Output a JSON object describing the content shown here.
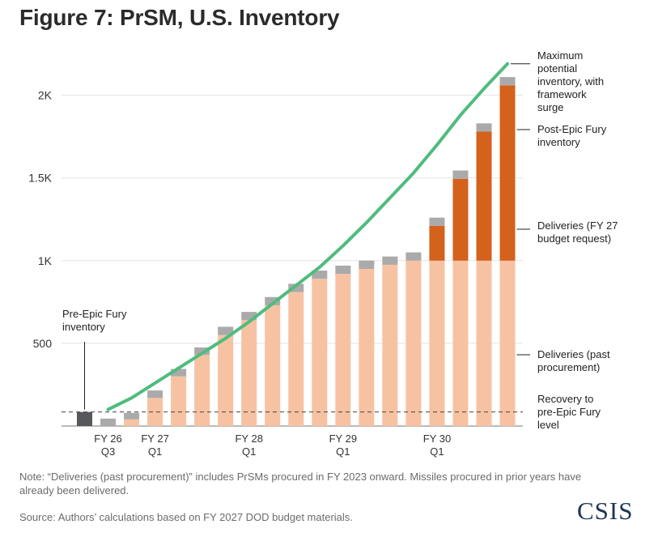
{
  "title": "Figure 7: PrSM, U.S. Inventory",
  "chart_data": {
    "type": "bar",
    "stacked": true,
    "ylim": [
      0,
      2300
    ],
    "y_ticks": [
      {
        "value": 500,
        "label": "500"
      },
      {
        "value": 1000,
        "label": "1K"
      },
      {
        "value": 1500,
        "label": "1.5K"
      },
      {
        "value": 2000,
        "label": "2K"
      }
    ],
    "x_tick_labels": [
      {
        "index": 1,
        "line1": "FY 26",
        "line2": "Q3"
      },
      {
        "index": 3,
        "line1": "FY 27",
        "line2": "Q1"
      },
      {
        "index": 7,
        "line1": "FY 28",
        "line2": "Q1"
      },
      {
        "index": 11,
        "line1": "FY 29",
        "line2": "Q1"
      },
      {
        "index": 15,
        "line1": "FY 30",
        "line2": "Q1"
      }
    ],
    "pre_epic_fury_inventory": 85,
    "past_procurement": [
      0,
      0,
      40,
      170,
      300,
      430,
      550,
      640,
      730,
      810,
      890,
      920,
      950,
      975,
      1000,
      1000,
      1000,
      1000,
      1000
    ],
    "fy27_request": [
      0,
      0,
      0,
      0,
      0,
      0,
      0,
      0,
      0,
      0,
      0,
      0,
      0,
      0,
      0,
      210,
      495,
      780,
      1060
    ],
    "post_epic_fury_top": [
      0,
      45,
      40,
      45,
      45,
      45,
      50,
      50,
      50,
      50,
      50,
      50,
      50,
      50,
      50,
      50,
      50,
      50,
      50
    ],
    "max_potential_line": [
      null,
      100,
      170,
      260,
      350,
      440,
      530,
      630,
      740,
      850,
      960,
      1090,
      1230,
      1380,
      1530,
      1700,
      1880,
      2040,
      2190
    ],
    "recovery_level": 85,
    "colors": {
      "past_procurement": "#f7c2a2",
      "fy27_request": "#d4611c",
      "post_epic_fury": "#aaaaaa",
      "pre_epic_fury": "#56585b",
      "max_line": "#4fbc7d",
      "grid": "#e3e3e3"
    },
    "annotations": {
      "max_potential": [
        "Maximum",
        "potential",
        "inventory, with",
        "framework",
        "surge"
      ],
      "post_epic": [
        "Post-Epic Fury",
        "inventory"
      ],
      "fy27": [
        "Deliveries (FY 27",
        "budget request)"
      ],
      "past": [
        "Deliveries (past",
        "procurement)"
      ],
      "recovery": [
        "Recovery to",
        "pre-Epic Fury",
        "level"
      ],
      "pre_epic": [
        "Pre-Epic Fury",
        "inventory"
      ]
    }
  },
  "note": "Note: “Deliveries (past procurement)” includes PrSMs procured in FY 2023 onward. Missiles procured in prior years have already been delivered.",
  "source": "Source: Authors’ calculations based on FY 2027 DOD budget materials.",
  "logo": "CSIS"
}
